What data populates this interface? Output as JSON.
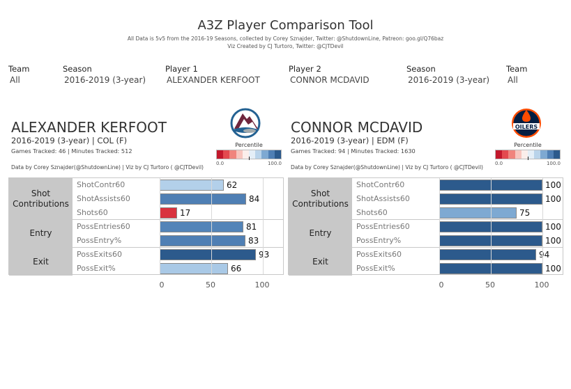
{
  "header": {
    "title": "A3Z Player Comparison Tool",
    "subtitle1": "All Data is 5v5 from the 2016-19 Seasons, collected by Corey Sznajder, Twitter: @ShutdownLine, Patreon: goo.gl/Q76baz",
    "subtitle2": "Viz Created by CJ Turtoro, Twitter: @CJTDevil"
  },
  "filters": [
    {
      "label": "Team",
      "value": "All"
    },
    {
      "label": "Season",
      "value": "2016-2019 (3-year)"
    },
    {
      "label": "Player 1",
      "value": "ALEXANDER KERFOOT"
    },
    {
      "label": "Player 2",
      "value": "CONNOR MCDAVID"
    },
    {
      "label": "Season",
      "value": "2016-2019 (3-year)"
    },
    {
      "label": "Team",
      "value": "All"
    }
  ],
  "legend": {
    "title": "Percentile",
    "min": "0.0",
    "max": "100.0",
    "colors": [
      "#c2182c",
      "#e34a4f",
      "#f0847d",
      "#f7c5be",
      "#fbeeeb",
      "#e4eef7",
      "#b9d3ea",
      "#7ea9d2",
      "#4f7fb4",
      "#2c5a8c"
    ]
  },
  "categories": [
    "Shot\nContributions",
    "Entry",
    "Exit"
  ],
  "axis_ticks": [
    "0",
    "50",
    "100"
  ],
  "players": [
    {
      "name": "ALEXANDER KERFOOT",
      "info": "2016-2019 (3-year) | COL (F)",
      "games": "Games Tracked: 46  | Minutes Tracked: 512",
      "credit": "Data by Corey Sznajder(@ShutdownLine) | Viz by CJ Turtoro ( @CJTDevil)",
      "logo": "colorado-avalanche-logo",
      "metrics": [
        {
          "label": "ShotContr60",
          "value": 62,
          "color": "#b3d0ea"
        },
        {
          "label": "ShotAssists60",
          "value": 84,
          "color": "#4f7fb4"
        },
        {
          "label": "Shots60",
          "value": 17,
          "color": "#d9323e"
        },
        {
          "label": "PossEntries60",
          "value": 81,
          "color": "#5384b8"
        },
        {
          "label": "PossEntry%",
          "value": 83,
          "color": "#4f7fb4"
        },
        {
          "label": "PossExits60",
          "value": 93,
          "color": "#2c5a8c"
        },
        {
          "label": "PossExit%",
          "value": 66,
          "color": "#a9c9e6"
        }
      ]
    },
    {
      "name": "CONNOR MCDAVID",
      "info": "2016-2019 (3-year) | EDM (F)",
      "games": "Games Tracked: 94  | Minutes Tracked: 1630",
      "credit": "Data by Corey Sznajder(@ShutdownLine) | Viz by CJ Turtoro ( @CJTDevil)",
      "logo": "edmonton-oilers-logo",
      "metrics": [
        {
          "label": "ShotContr60",
          "value": 100,
          "color": "#2c5a8c"
        },
        {
          "label": "ShotAssists60",
          "value": 100,
          "color": "#2c5a8c"
        },
        {
          "label": "Shots60",
          "value": 75,
          "color": "#7ea9d2"
        },
        {
          "label": "PossEntries60",
          "value": 100,
          "color": "#2c5a8c"
        },
        {
          "label": "PossEntry%",
          "value": 100,
          "color": "#2c5a8c"
        },
        {
          "label": "PossExits60",
          "value": 94,
          "color": "#2c5a8c"
        },
        {
          "label": "PossExit%",
          "value": 100,
          "color": "#2c5a8c"
        }
      ]
    }
  ]
}
